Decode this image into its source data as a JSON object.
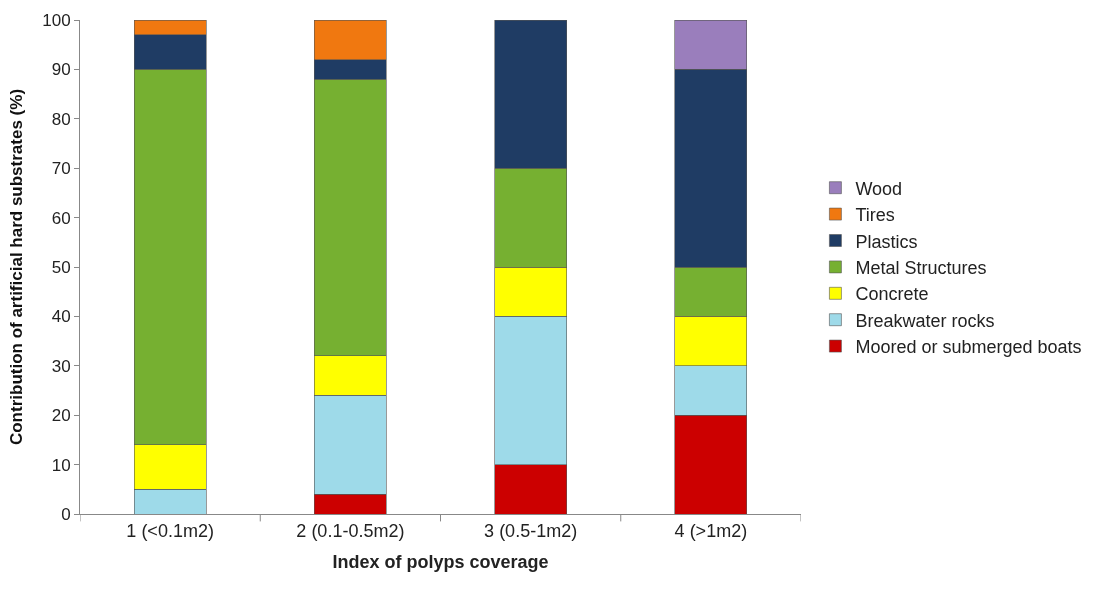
{
  "chart_data": {
    "type": "bar",
    "stacked": true,
    "xlabel": "Index of polyps coverage",
    "ylabel": "Contribution of artificial hard substrates (%)",
    "categories": [
      "1 (<0.1m2)",
      "2 (0.1-0.5m2)",
      "3 (0.5-1m2)",
      "4 (>1m2)"
    ],
    "series": [
      {
        "name": "Moored or submerged boats",
        "color": "#cc0000",
        "values": [
          null,
          4,
          10,
          20
        ]
      },
      {
        "name": "Breakwater rocks",
        "color": "#9edae9",
        "values": [
          5,
          20,
          30,
          10
        ]
      },
      {
        "name": "Concrete",
        "color": "#ffff00",
        "values": [
          9,
          8,
          10,
          10
        ]
      },
      {
        "name": "Metal Structures",
        "color": "#76b031",
        "values": [
          76,
          56,
          20,
          10
        ]
      },
      {
        "name": "Plastics",
        "color": "#1f3c64",
        "values": [
          7,
          4,
          30,
          40
        ]
      },
      {
        "name": "Tires",
        "color": "#f07810",
        "values": [
          3,
          8,
          null,
          null
        ]
      },
      {
        "name": "Wood",
        "color": "#9a7ebc",
        "values": [
          null,
          null,
          null,
          10
        ]
      }
    ],
    "ylim": [
      0,
      100
    ],
    "yticks": [
      0,
      10,
      20,
      30,
      40,
      50,
      60,
      70,
      80,
      90,
      100
    ],
    "legend": "right",
    "grid": false
  }
}
